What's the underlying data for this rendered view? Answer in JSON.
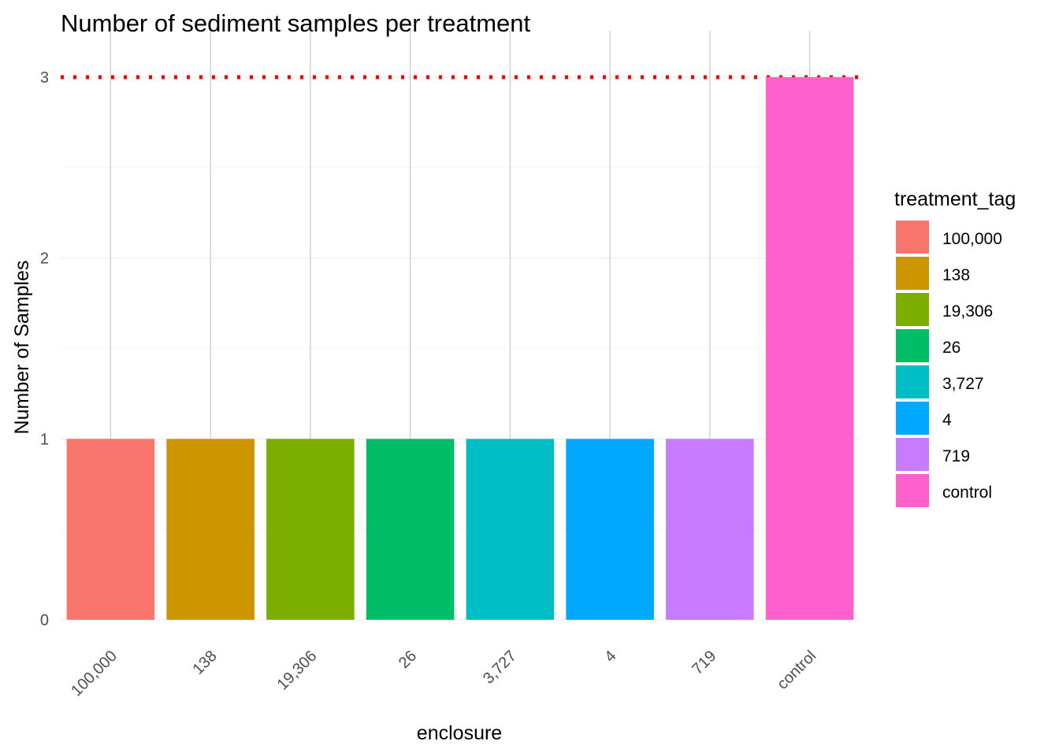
{
  "chart_data": {
    "type": "bar",
    "title": "Number of sediment samples per treatment",
    "xlabel": "enclosure",
    "ylabel": "Number of Samples",
    "categories": [
      "100,000",
      "138",
      "19,306",
      "26",
      "3,727",
      "4",
      "719",
      "control"
    ],
    "values": [
      1,
      1,
      1,
      1,
      1,
      1,
      1,
      3
    ],
    "colors": [
      "#F8766D",
      "#CD9600",
      "#7CAE00",
      "#00BE67",
      "#00BFC4",
      "#00A9FF",
      "#C77CFF",
      "#FF61CC"
    ],
    "yticks": [
      0,
      1,
      2,
      3
    ],
    "ylim": [
      0,
      3.1
    ],
    "grid": true,
    "reference_line": {
      "y": 3,
      "color": "#FF0000",
      "style": "dotted"
    },
    "legend": {
      "title": "treatment_tag",
      "position": "right",
      "entries": [
        "100,000",
        "138",
        "19,306",
        "26",
        "3,727",
        "4",
        "719",
        "control"
      ]
    }
  }
}
